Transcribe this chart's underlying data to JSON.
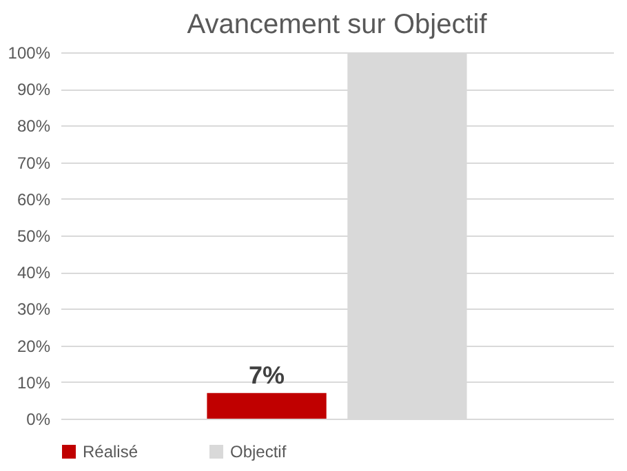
{
  "chart_data": {
    "type": "bar",
    "title": "Avancement sur Objectif",
    "categories": [
      null
    ],
    "series": [
      {
        "name": "Réalisé",
        "color": "#c00000",
        "values": [
          7
        ],
        "value_labels": [
          "7%"
        ]
      },
      {
        "name": "Objectif",
        "color": "#d9d9d9",
        "values": [
          100
        ]
      }
    ],
    "ylim": [
      0,
      100
    ],
    "yticks": [
      {
        "value": 0,
        "label": "0%"
      },
      {
        "value": 10,
        "label": "10%"
      },
      {
        "value": 20,
        "label": "20%"
      },
      {
        "value": 30,
        "label": "30%"
      },
      {
        "value": 40,
        "label": "40%"
      },
      {
        "value": 50,
        "label": "50%"
      },
      {
        "value": 60,
        "label": "60%"
      },
      {
        "value": 70,
        "label": "70%"
      },
      {
        "value": 80,
        "label": "80%"
      },
      {
        "value": 90,
        "label": "90%"
      },
      {
        "value": 100,
        "label": "100%"
      }
    ],
    "grid": "y",
    "legend": "bottom"
  }
}
